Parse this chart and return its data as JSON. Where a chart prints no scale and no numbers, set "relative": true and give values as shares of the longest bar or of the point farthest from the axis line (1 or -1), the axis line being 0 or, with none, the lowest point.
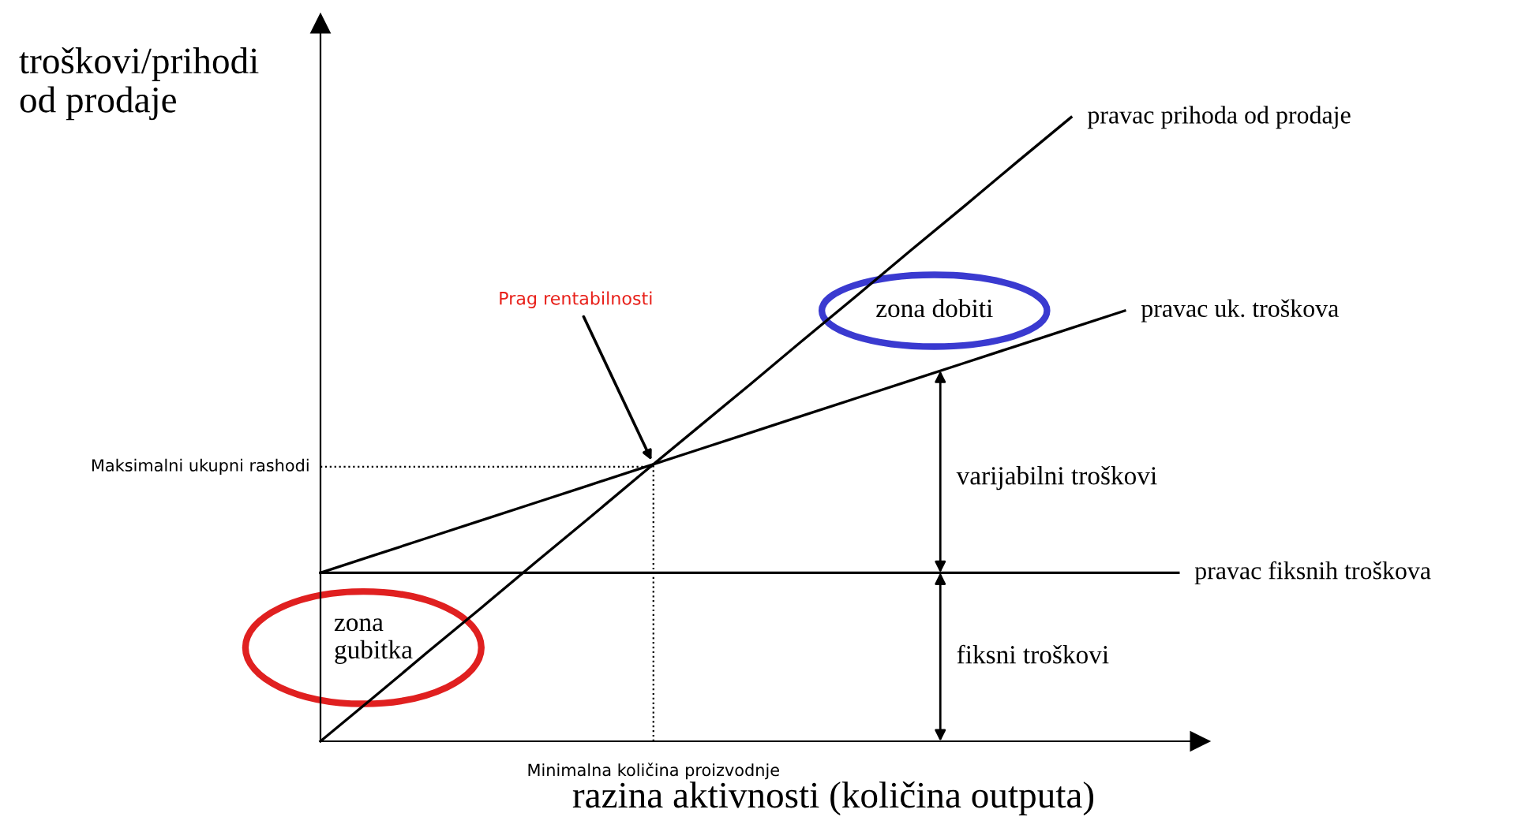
{
  "chart_data": {
    "type": "line",
    "relative": true,
    "legend": false,
    "marker": "none",
    "line_style": "solid",
    "ylabel": "troškovi/prihodi od prodaje",
    "xlabel": "razina aktivnosti (količina outputa)",
    "categories": [
      null,
      null,
      null,
      null,
      null,
      null,
      null,
      null,
      null,
      null,
      null,
      null,
      null,
      null,
      null,
      null,
      null
    ],
    "series": [
      {
        "name": "pravac prihoda od prodaje",
        "color": "#000000",
        "values": [
          0,
          0.071,
          0.143,
          0.214,
          0.286,
          0.357,
          0.429,
          0.5,
          0.571,
          0.643,
          0.714,
          0.786,
          0.857,
          0.929,
          1,
          null,
          null
        ]
      },
      {
        "name": "pravac uk. troškova",
        "color": "#000000",
        "values": [
          0.27,
          0.298,
          0.326,
          0.354,
          0.382,
          0.41,
          0.438,
          0.466,
          0.494,
          0.522,
          0.55,
          0.578,
          0.606,
          0.634,
          0.662,
          0.69,
          null
        ]
      },
      {
        "name": "pravac fiksnih troškova",
        "color": "#000000",
        "values": [
          0.27,
          0.27,
          0.27,
          0.27,
          0.27,
          0.27,
          0.27,
          0.27,
          0.27,
          0.27,
          0.27,
          0.27,
          0.27,
          0.27,
          0.27,
          0.27,
          0.27
        ]
      }
    ],
    "ref_lines": [
      {
        "axis": "y",
        "value": 0.44,
        "label": "Maksimalni ukupni rashodi",
        "line_style": "dotted"
      }
    ],
    "annotations": [
      "Prag rentabilnosti",
      "zona dobiti",
      "zona gubitka",
      "varijabilni troškovi",
      "fiksni troškovi",
      "Minimalna količina proizvodnje"
    ]
  }
}
